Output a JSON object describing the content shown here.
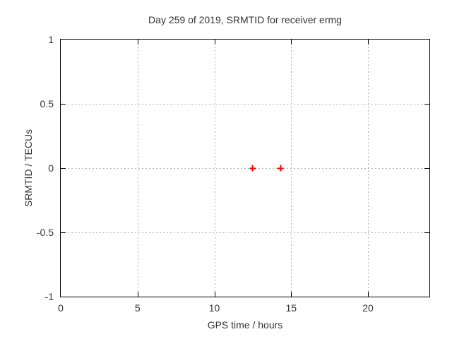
{
  "chart_data": {
    "type": "scatter",
    "title": "Day 259 of 2019, SRMTID for receiver ermg",
    "xlabel": "GPS time / hours",
    "ylabel": "SRMTID / TECUs",
    "xlim": [
      0,
      24
    ],
    "ylim": [
      -1,
      1
    ],
    "xticks": {
      "values": [
        0,
        5,
        10,
        15,
        20
      ],
      "labels": [
        "0",
        "5",
        "10",
        "15",
        "20"
      ]
    },
    "yticks": {
      "values": [
        -1,
        -0.5,
        0,
        0.5,
        1
      ],
      "labels": [
        "-1",
        "-0.5",
        "0",
        "0.5",
        "1"
      ]
    },
    "grid": true,
    "grid_color": "#b4b4b4",
    "axis_color": "#000000",
    "text_color": "#333333",
    "background_color": "#ffffff",
    "series": [
      {
        "marker": "plus",
        "color": "#ff0000",
        "points": [
          {
            "x": 12.5,
            "y": 0
          },
          {
            "x": 14.3,
            "y": 0
          }
        ]
      }
    ]
  }
}
